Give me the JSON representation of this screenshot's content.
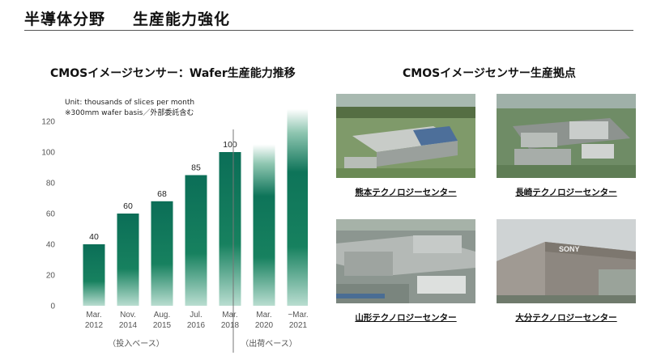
{
  "slide": {
    "title_left": "半導体分野",
    "title_right": "生産能力強化"
  },
  "chart_data": {
    "type": "bar",
    "title": "CMOSイメージセンサー：Wafer生産能力推移",
    "unit_note": "Unit: thousands of slices per month",
    "basis_note": "※300mm wafer basis／外部委託含む",
    "categories": [
      [
        "Mar.",
        "2012"
      ],
      [
        "Nov.",
        "2014"
      ],
      [
        "Aug.",
        "2015"
      ],
      [
        "Jul.",
        "2016"
      ],
      [
        "Mar.",
        "2018"
      ],
      [
        "Mar.",
        "2020"
      ],
      [
        "~Mar.",
        "2021"
      ]
    ],
    "values": [
      40,
      60,
      68,
      85,
      100,
      105,
      128
    ],
    "value_labels": [
      "40",
      "60",
      "68",
      "85",
      "100",
      "",
      ""
    ],
    "faded": [
      false,
      false,
      false,
      false,
      false,
      true,
      true
    ],
    "yticks": [
      0,
      20,
      40,
      60,
      80,
      100,
      120
    ],
    "ylim": [
      0,
      130
    ],
    "group_labels": [
      "（投入ベース）",
      "（出荷ベース）"
    ],
    "bar_color": "#0b6e57",
    "grid": false
  },
  "sites": {
    "title": "CMOSイメージセンサー生産拠点",
    "items": [
      {
        "label": "熊本テクノロジーセンター"
      },
      {
        "label": "長崎テクノロジーセンター"
      },
      {
        "label": "山形テクノロジーセンター"
      },
      {
        "label": "大分テクノロジーセンター",
        "sign": "SONY"
      }
    ]
  }
}
